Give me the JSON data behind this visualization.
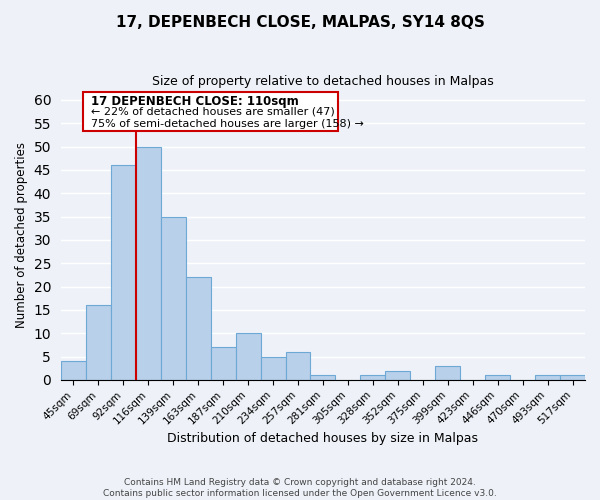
{
  "title": "17, DEPENBECH CLOSE, MALPAS, SY14 8QS",
  "subtitle": "Size of property relative to detached houses in Malpas",
  "xlabel": "Distribution of detached houses by size in Malpas",
  "ylabel": "Number of detached properties",
  "bin_labels": [
    "45sqm",
    "69sqm",
    "92sqm",
    "116sqm",
    "139sqm",
    "163sqm",
    "187sqm",
    "210sqm",
    "234sqm",
    "257sqm",
    "281sqm",
    "305sqm",
    "328sqm",
    "352sqm",
    "375sqm",
    "399sqm",
    "423sqm",
    "446sqm",
    "470sqm",
    "493sqm",
    "517sqm"
  ],
  "bar_heights": [
    4,
    16,
    46,
    50,
    35,
    22,
    7,
    10,
    5,
    6,
    1,
    0,
    1,
    2,
    0,
    3,
    0,
    1,
    0,
    1,
    1
  ],
  "bar_color": "#b8d0ea",
  "bar_edge_color": "#6ea8d4",
  "vline_color": "#cc0000",
  "vline_pos": 3,
  "ylim": [
    0,
    62
  ],
  "yticks": [
    0,
    5,
    10,
    15,
    20,
    25,
    30,
    35,
    40,
    45,
    50,
    55,
    60
  ],
  "annotation_title": "17 DEPENBECH CLOSE: 110sqm",
  "annotation_line1": "← 22% of detached houses are smaller (47)",
  "annotation_line2": "75% of semi-detached houses are larger (158) →",
  "annotation_box_color": "#ffffff",
  "annotation_box_edge": "#cc0000",
  "footer1": "Contains HM Land Registry data © Crown copyright and database right 2024.",
  "footer2": "Contains public sector information licensed under the Open Government Licence v3.0.",
  "bg_color": "#eef2f8",
  "grid_color": "#ffffff"
}
